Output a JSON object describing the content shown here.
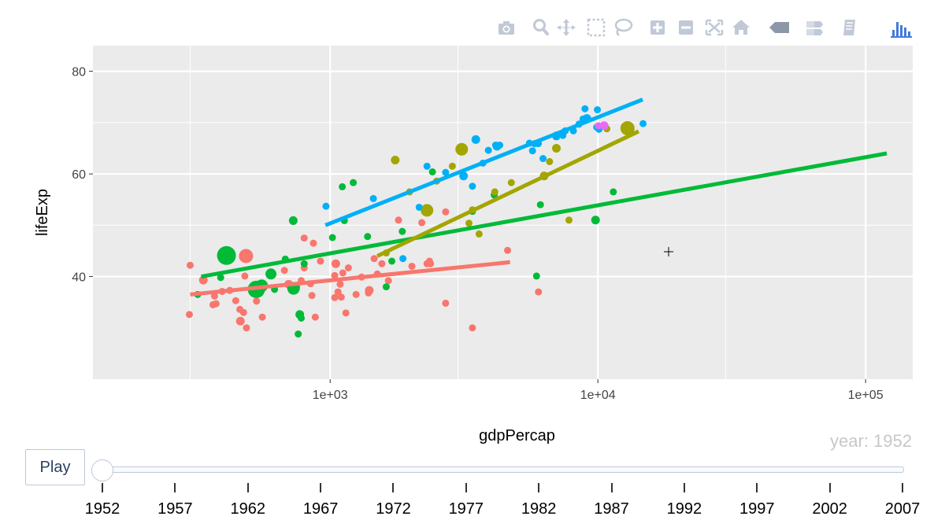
{
  "modebar": [
    {
      "name": "camera-icon"
    },
    {
      "name": "zoom-icon"
    },
    {
      "name": "pan-icon"
    },
    {
      "name": "box-select-icon"
    },
    {
      "name": "lasso-select-icon"
    },
    {
      "name": "zoom-in-icon"
    },
    {
      "name": "zoom-out-icon"
    },
    {
      "name": "autoscale-icon"
    },
    {
      "name": "reset-axes-icon"
    },
    {
      "name": "hover-closest-icon"
    },
    {
      "name": "hover-compare-icon"
    },
    {
      "name": "spike-lines-icon"
    },
    {
      "name": "plotly-logo-icon"
    }
  ],
  "colors": {
    "panel": "#ebebeb",
    "grid": "#ffffff",
    "series": [
      "#f8766d",
      "#00ba38",
      "#a3a500",
      "#00b0f6",
      "#e76bf3"
    ]
  },
  "chart_data": {
    "type": "scatter",
    "title": "",
    "xlabel": "gdpPercap",
    "ylabel": "lifeExp",
    "x_scale": "log",
    "x_ticks": [
      {
        "value": 1000,
        "label": "1e+03"
      },
      {
        "value": 10000,
        "label": "1e+04"
      },
      {
        "value": 100000,
        "label": "1e+05"
      }
    ],
    "y_ticks": [
      {
        "value": 40,
        "label": "40"
      },
      {
        "value": 60,
        "label": "60"
      },
      {
        "value": 80,
        "label": "80"
      }
    ],
    "xlim": [
      130,
      150000
    ],
    "ylim": [
      20,
      85
    ],
    "series": [
      {
        "points": [
          [
            298,
            32.6
          ],
          [
            300,
            42.2
          ],
          [
            336,
            39.3
          ],
          [
            365,
            34.5
          ],
          [
            370,
            36.2
          ],
          [
            375,
            34.7
          ],
          [
            395,
            37.1
          ],
          [
            422,
            37.3
          ],
          [
            444,
            35.3
          ],
          [
            460,
            33.6
          ],
          [
            462,
            31.3
          ],
          [
            475,
            33
          ],
          [
            480,
            40.1
          ],
          [
            485,
            44
          ],
          [
            487,
            30
          ],
          [
            531,
            35.2
          ],
          [
            558,
            32.1
          ],
          [
            675,
            41.2
          ],
          [
            700,
            38.5
          ],
          [
            750,
            38
          ],
          [
            780,
            39.2
          ],
          [
            800,
            47.5
          ],
          [
            800,
            41.7
          ],
          [
            845,
            38.6
          ],
          [
            855,
            36.3
          ],
          [
            866,
            46.5
          ],
          [
            880,
            32.1
          ],
          [
            920,
            43
          ],
          [
            1040,
            40.2
          ],
          [
            1040,
            35.9
          ],
          [
            1050,
            42.5
          ],
          [
            1070,
            37
          ],
          [
            1090,
            38.5
          ],
          [
            1100,
            36
          ],
          [
            1115,
            40.7
          ],
          [
            1145,
            32.9
          ],
          [
            1170,
            41.7
          ],
          [
            1250,
            36.5
          ],
          [
            1310,
            39.9
          ],
          [
            1390,
            36.8
          ],
          [
            1400,
            37.3
          ],
          [
            1460,
            43.5
          ],
          [
            1500,
            40.5
          ],
          [
            1560,
            42.5
          ],
          [
            1650,
            39.2
          ],
          [
            1800,
            51
          ],
          [
            2020,
            42
          ],
          [
            2200,
            50.5
          ],
          [
            2300,
            42.5
          ],
          [
            2370,
            42.5
          ],
          [
            2350,
            43
          ],
          [
            2700,
            34.8
          ],
          [
            2700,
            52.6
          ],
          [
            3400,
            30
          ],
          [
            4600,
            45.1
          ],
          [
            6000,
            37
          ]
        ],
        "trend": [
          [
            300,
            36.5
          ],
          [
            4700,
            42.8
          ]
        ]
      },
      {
        "points": [
          [
            320,
            36.5
          ],
          [
            390,
            39.8
          ],
          [
            410,
            44.1
          ],
          [
            530,
            37.5
          ],
          [
            555,
            38.2
          ],
          [
            601,
            40.5
          ],
          [
            620,
            37.5
          ],
          [
            680,
            43.4
          ],
          [
            730,
            37.7
          ],
          [
            760,
            28.8
          ],
          [
            770,
            32.6
          ],
          [
            780,
            31.9
          ],
          [
            728,
            50.9
          ],
          [
            800,
            42.5
          ],
          [
            1020,
            47.6
          ],
          [
            1110,
            57.5
          ],
          [
            1130,
            50.9
          ],
          [
            1220,
            58.3
          ],
          [
            1380,
            47.8
          ],
          [
            1620,
            38
          ],
          [
            1700,
            43
          ],
          [
            1860,
            48.8
          ],
          [
            2410,
            60.4
          ],
          [
            3400,
            52.7
          ],
          [
            4100,
            55.9
          ],
          [
            5900,
            40.1
          ],
          [
            6100,
            54
          ],
          [
            11420,
            56.5
          ],
          [
            9800,
            51
          ]
        ],
        "trend": [
          [
            330,
            40
          ],
          [
            120000,
            64
          ]
        ]
      },
      {
        "points": [
          [
            1620,
            44.6
          ],
          [
            1750,
            62.7
          ],
          [
            1980,
            56.5
          ],
          [
            2500,
            58.6
          ],
          [
            2860,
            61.5
          ],
          [
            3100,
            64.8
          ],
          [
            3300,
            50.4
          ],
          [
            3400,
            53
          ],
          [
            3600,
            48.3
          ],
          [
            4120,
            56.5
          ],
          [
            4750,
            58.3
          ],
          [
            6300,
            59.6
          ],
          [
            6600,
            62.4
          ],
          [
            7000,
            65
          ],
          [
            7800,
            51
          ],
          [
            12900,
            68.9
          ],
          [
            10800,
            68.8
          ],
          [
            2300,
            52.9
          ]
        ],
        "trend": [
          [
            1500,
            44
          ],
          [
            14200,
            68.3
          ]
        ]
      },
      {
        "points": [
          [
            965,
            53.7
          ],
          [
            1450,
            55.2
          ],
          [
            1870,
            43.5
          ],
          [
            2150,
            53.5
          ],
          [
            2300,
            61.5
          ],
          [
            2700,
            60.3
          ],
          [
            3150,
            59.6
          ],
          [
            3400,
            57.6
          ],
          [
            3500,
            66.7
          ],
          [
            3720,
            62.1
          ],
          [
            3900,
            64.6
          ],
          [
            4150,
            65.6
          ],
          [
            4300,
            65.6
          ],
          [
            4200,
            65.4
          ],
          [
            5550,
            66
          ],
          [
            5700,
            64.5
          ],
          [
            5990,
            65.9
          ],
          [
            6240,
            63
          ],
          [
            7000,
            67.4
          ],
          [
            7400,
            67.5
          ],
          [
            7550,
            68.4
          ],
          [
            8100,
            68.4
          ],
          [
            8500,
            69.7
          ],
          [
            8800,
            70.7
          ],
          [
            9100,
            70.8
          ],
          [
            9960,
            72.5
          ],
          [
            10100,
            68.7
          ],
          [
            8950,
            72.7
          ],
          [
            9900,
            69.1
          ],
          [
            14750,
            69.8
          ],
          [
            5800,
            65.9
          ]
        ],
        "trend": [
          [
            960,
            50
          ],
          [
            14700,
            74.5
          ]
        ]
      },
      {
        "points": [
          [
            10040,
            69.4
          ],
          [
            10556,
            69.4
          ]
        ]
      }
    ]
  },
  "slider": {
    "play_label": "Play",
    "current_label": "year: 1952",
    "steps": [
      "1952",
      "1957",
      "1962",
      "1967",
      "1972",
      "1977",
      "1982",
      "1987",
      "1992",
      "1997",
      "2002",
      "2007"
    ],
    "active_index": 0
  }
}
